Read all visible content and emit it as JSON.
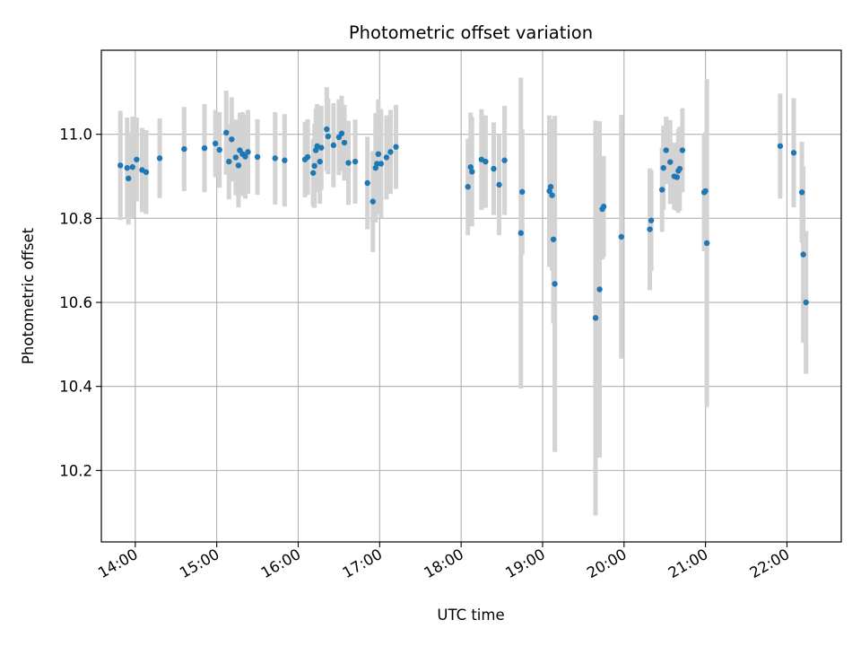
{
  "chart_data": {
    "type": "scatter",
    "title": "Photometric offset variation",
    "xlabel": "UTC time",
    "ylabel": "Photometric offset",
    "grid": true,
    "xlim": [
      "13:35",
      "22:40"
    ],
    "ylim": [
      10.03,
      11.2
    ],
    "x_ticks": [
      "14:00",
      "15:00",
      "16:00",
      "17:00",
      "18:00",
      "19:00",
      "20:00",
      "21:00",
      "22:00"
    ],
    "y_ticks": [
      10.2,
      10.4,
      10.6,
      10.8,
      11.0
    ],
    "y_tick_labels": [
      "10.2",
      "10.4",
      "10.6",
      "10.8",
      "11.0"
    ],
    "point_color": "#1f77b4",
    "errorbar_color": "#d3d3d3",
    "points": [
      {
        "t": "13:49",
        "y": 10.926,
        "err": 0.13
      },
      {
        "t": "13:54",
        "y": 10.92,
        "err": 0.12
      },
      {
        "t": "13:55",
        "y": 10.895,
        "err": 0.11
      },
      {
        "t": "13:58",
        "y": 10.922,
        "err": 0.12
      },
      {
        "t": "14:01",
        "y": 10.94,
        "err": 0.1
      },
      {
        "t": "14:05",
        "y": 10.915,
        "err": 0.1
      },
      {
        "t": "14:08",
        "y": 10.91,
        "err": 0.1
      },
      {
        "t": "14:18",
        "y": 10.943,
        "err": 0.095
      },
      {
        "t": "14:36",
        "y": 10.965,
        "err": 0.1
      },
      {
        "t": "14:51",
        "y": 10.967,
        "err": 0.105
      },
      {
        "t": "14:59",
        "y": 10.978,
        "err": 0.08
      },
      {
        "t": "15:02",
        "y": 10.963,
        "err": 0.09
      },
      {
        "t": "15:07",
        "y": 11.004,
        "err": 0.1
      },
      {
        "t": "15:09",
        "y": 10.935,
        "err": 0.09
      },
      {
        "t": "15:11",
        "y": 10.988,
        "err": 0.1
      },
      {
        "t": "15:14",
        "y": 10.945,
        "err": 0.09
      },
      {
        "t": "15:16",
        "y": 10.926,
        "err": 0.1
      },
      {
        "t": "15:17",
        "y": 10.962,
        "err": 0.09
      },
      {
        "t": "15:19",
        "y": 10.953,
        "err": 0.1
      },
      {
        "t": "15:21",
        "y": 10.947,
        "err": 0.1
      },
      {
        "t": "15:23",
        "y": 10.958,
        "err": 0.1
      },
      {
        "t": "15:30",
        "y": 10.946,
        "err": 0.09
      },
      {
        "t": "15:43",
        "y": 10.943,
        "err": 0.11
      },
      {
        "t": "15:50",
        "y": 10.938,
        "err": 0.11
      },
      {
        "t": "16:05",
        "y": 10.94,
        "err": 0.09
      },
      {
        "t": "16:07",
        "y": 10.946,
        "err": 0.09
      },
      {
        "t": "16:11",
        "y": 10.908,
        "err": 0.08
      },
      {
        "t": "16:12",
        "y": 10.925,
        "err": 0.1
      },
      {
        "t": "16:13",
        "y": 10.962,
        "err": 0.1
      },
      {
        "t": "16:14",
        "y": 10.972,
        "err": 0.1
      },
      {
        "t": "16:16",
        "y": 10.935,
        "err": 0.1
      },
      {
        "t": "16:17",
        "y": 10.968,
        "err": 0.1
      },
      {
        "t": "16:21",
        "y": 11.012,
        "err": 0.1
      },
      {
        "t": "16:22",
        "y": 10.995,
        "err": 0.09
      },
      {
        "t": "16:26",
        "y": 10.974,
        "err": 0.1
      },
      {
        "t": "16:30",
        "y": 10.993,
        "err": 0.09
      },
      {
        "t": "16:32",
        "y": 11.002,
        "err": 0.09
      },
      {
        "t": "16:34",
        "y": 10.98,
        "err": 0.09
      },
      {
        "t": "16:37",
        "y": 10.932,
        "err": 0.1
      },
      {
        "t": "16:42",
        "y": 10.935,
        "err": 0.1
      },
      {
        "t": "16:51",
        "y": 10.884,
        "err": 0.11
      },
      {
        "t": "16:55",
        "y": 10.84,
        "err": 0.12
      },
      {
        "t": "16:57",
        "y": 10.92,
        "err": 0.13
      },
      {
        "t": "16:58",
        "y": 10.93,
        "err": 0.12
      },
      {
        "t": "16:59",
        "y": 10.953,
        "err": 0.13
      },
      {
        "t": "17:01",
        "y": 10.93,
        "err": 0.13
      },
      {
        "t": "17:05",
        "y": 10.945,
        "err": 0.1
      },
      {
        "t": "17:08",
        "y": 10.958,
        "err": 0.1
      },
      {
        "t": "17:12",
        "y": 10.97,
        "err": 0.1
      },
      {
        "t": "18:05",
        "y": 10.875,
        "err": 0.115
      },
      {
        "t": "18:07",
        "y": 10.922,
        "err": 0.13
      },
      {
        "t": "18:08",
        "y": 10.911,
        "err": 0.13
      },
      {
        "t": "18:15",
        "y": 10.94,
        "err": 0.12
      },
      {
        "t": "18:18",
        "y": 10.935,
        "err": 0.11
      },
      {
        "t": "18:24",
        "y": 10.918,
        "err": 0.11
      },
      {
        "t": "18:28",
        "y": 10.88,
        "err": 0.12
      },
      {
        "t": "18:32",
        "y": 10.938,
        "err": 0.13
      },
      {
        "t": "18:44",
        "y": 10.765,
        "err": 0.37
      },
      {
        "t": "18:45",
        "y": 10.863,
        "err": 0.15
      },
      {
        "t": "19:05",
        "y": 10.865,
        "err": 0.18
      },
      {
        "t": "19:06",
        "y": 10.875,
        "err": 0.16
      },
      {
        "t": "19:07",
        "y": 10.855,
        "err": 0.18
      },
      {
        "t": "19:08",
        "y": 10.75,
        "err": 0.2
      },
      {
        "t": "19:09",
        "y": 10.644,
        "err": 0.4
      },
      {
        "t": "19:39",
        "y": 10.563,
        "err": 0.47
      },
      {
        "t": "19:42",
        "y": 10.631,
        "err": 0.4
      },
      {
        "t": "19:44",
        "y": 10.822,
        "err": 0.12
      },
      {
        "t": "19:45",
        "y": 10.828,
        "err": 0.12
      },
      {
        "t": "19:58",
        "y": 10.756,
        "err": 0.29
      },
      {
        "t": "20:19",
        "y": 10.774,
        "err": 0.145
      },
      {
        "t": "20:20",
        "y": 10.795,
        "err": 0.12
      },
      {
        "t": "20:28",
        "y": 10.868,
        "err": 0.1
      },
      {
        "t": "20:29",
        "y": 10.92,
        "err": 0.1
      },
      {
        "t": "20:31",
        "y": 10.962,
        "err": 0.08
      },
      {
        "t": "20:34",
        "y": 10.934,
        "err": 0.1
      },
      {
        "t": "20:37",
        "y": 10.9,
        "err": 0.08
      },
      {
        "t": "20:39",
        "y": 10.898,
        "err": 0.08
      },
      {
        "t": "20:40",
        "y": 10.913,
        "err": 0.1
      },
      {
        "t": "20:41",
        "y": 10.918,
        "err": 0.1
      },
      {
        "t": "20:43",
        "y": 10.962,
        "err": 0.1
      },
      {
        "t": "20:59",
        "y": 10.862,
        "err": 0.14
      },
      {
        "t": "21:00",
        "y": 10.865,
        "err": 0.14
      },
      {
        "t": "21:01",
        "y": 10.741,
        "err": 0.39
      },
      {
        "t": "21:55",
        "y": 10.972,
        "err": 0.125
      },
      {
        "t": "22:05",
        "y": 10.956,
        "err": 0.13
      },
      {
        "t": "22:11",
        "y": 10.862,
        "err": 0.12
      },
      {
        "t": "22:12",
        "y": 10.714,
        "err": 0.21
      },
      {
        "t": "22:14",
        "y": 10.6,
        "err": 0.17
      }
    ]
  }
}
